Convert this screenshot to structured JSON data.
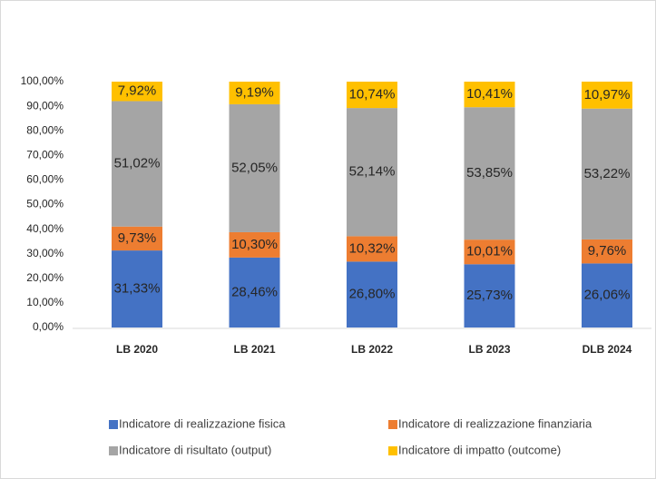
{
  "chart_data": {
    "type": "stacked_bar",
    "categories": [
      "LB 2020",
      "LB 2021",
      "LB 2022",
      "LB 2023",
      "DLB 2024"
    ],
    "series": [
      {
        "name": "Indicatore di realizzazione fisica",
        "color": "#4472c4",
        "values": [
          31.33,
          28.46,
          26.8,
          25.73,
          26.06
        ],
        "value_labels": [
          "31,33%",
          "28,46%",
          "26,80%",
          "25,73%",
          "26,06%"
        ]
      },
      {
        "name": "Indicatore di realizzazione finanziaria",
        "color": "#ed7d31",
        "values": [
          9.73,
          10.3,
          10.32,
          10.01,
          9.76
        ],
        "value_labels": [
          "9,73%",
          "10,30%",
          "10,32%",
          "10,01%",
          "9,76%"
        ]
      },
      {
        "name": "Indicatore di risultato (output)",
        "color": "#a5a5a5",
        "values": [
          51.02,
          52.05,
          52.14,
          53.85,
          53.22
        ],
        "value_labels": [
          "51,02%",
          "52,05%",
          "52,14%",
          "53,85%",
          "53,22%"
        ]
      },
      {
        "name": "Indicatore di impatto (outcome)",
        "color": "#ffc000",
        "values": [
          7.92,
          9.19,
          10.74,
          10.41,
          10.97
        ],
        "value_labels": [
          "7,92%",
          "9,19%",
          "10,74%",
          "10,41%",
          "10,97%"
        ]
      }
    ],
    "ylim": [
      0,
      100
    ],
    "yticks": [
      {
        "value": 0,
        "label": "0,00%"
      },
      {
        "value": 10,
        "label": "10,00%"
      },
      {
        "value": 20,
        "label": "20,00%"
      },
      {
        "value": 30,
        "label": "30,00%"
      },
      {
        "value": 40,
        "label": "40,00%"
      },
      {
        "value": 50,
        "label": "50,00%"
      },
      {
        "value": 60,
        "label": "60,00%"
      },
      {
        "value": 70,
        "label": "70,00%"
      },
      {
        "value": 80,
        "label": "80,00%"
      },
      {
        "value": 90,
        "label": "90,00%"
      },
      {
        "value": 100,
        "label": "100,00%"
      }
    ],
    "grid": false
  }
}
